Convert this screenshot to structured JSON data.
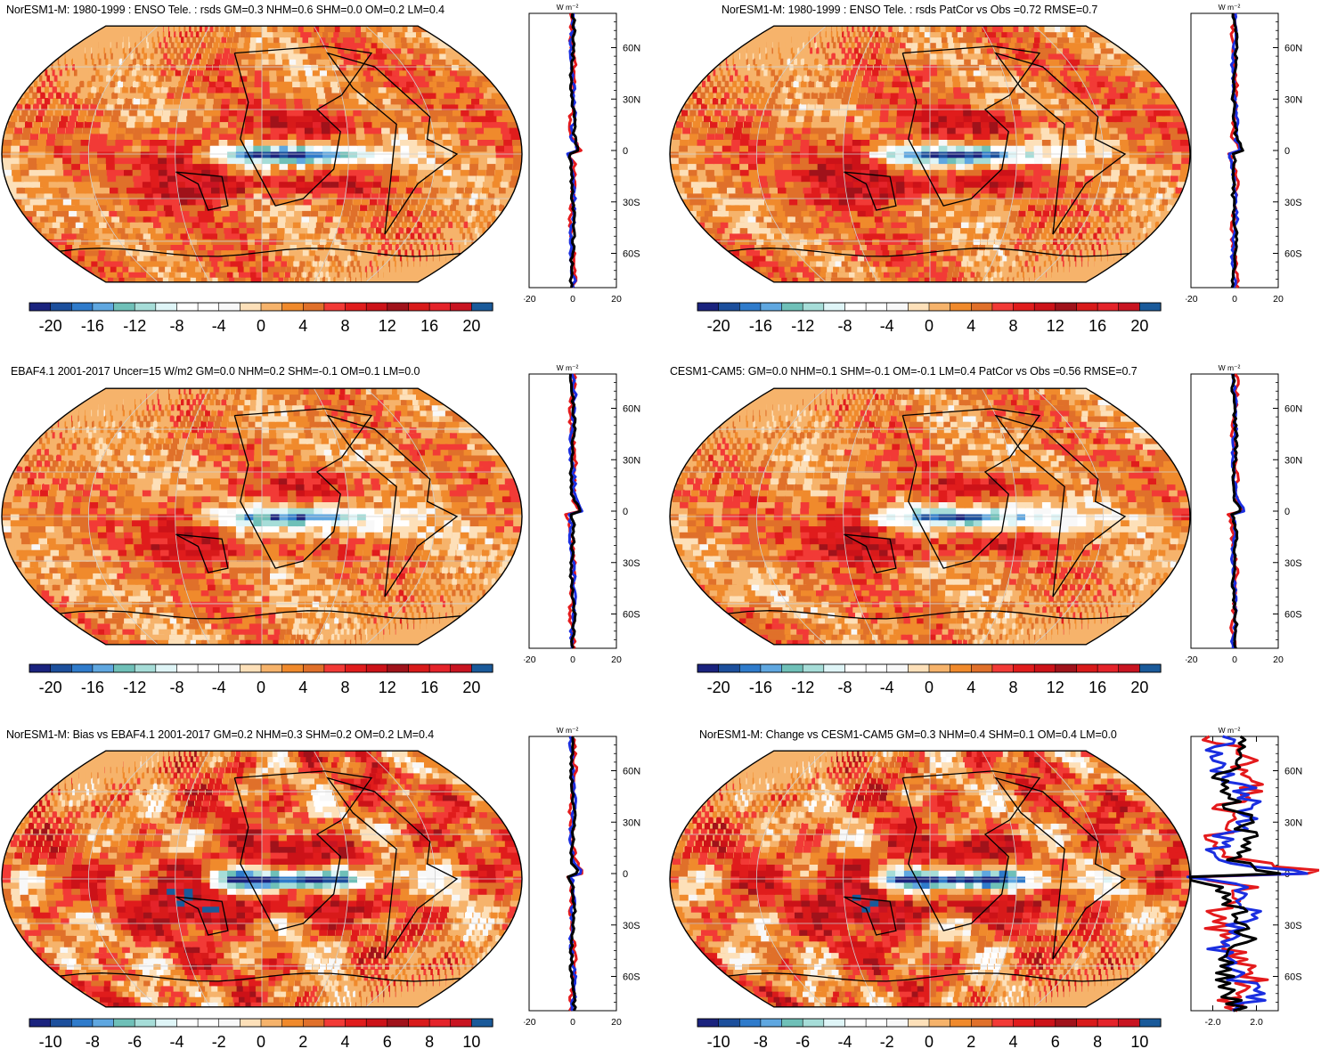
{
  "colors": {
    "div11": [
      "#1a237e",
      "#1c4f9c",
      "#2f7bcb",
      "#5fa7e0",
      "#6fc0b8",
      "#a6ddd8",
      "#dff5f7",
      "#ffffff",
      "#ffffff",
      "#f8f8f8",
      "#fde0b9",
      "#f6b36b",
      "#f08a2c",
      "#e0702a",
      "#f23a36",
      "#e01c1c",
      "#cc1218",
      "#a0121a",
      "#d81a1a",
      "#e4232a",
      "#c81421",
      "#1a5a9a"
    ],
    "obs": "#000000",
    "model": "#e41a1c",
    "alt": "#1a2ee0"
  },
  "chart_data": [
    {
      "type": "heatmap",
      "title": "NorESM1-M: 1980-1999 : ENSO Tele. : rsds GM=0.3 NHM=0.6 SHM=0.0 OM=0.2 LM=0.4",
      "colorbar_ticks": [
        "-20",
        "-16",
        "-12",
        "-8",
        "-4",
        "0",
        "4",
        "8",
        "12",
        "16",
        "20"
      ],
      "profile": {
        "xlim": [
          -20,
          20
        ],
        "xticks": [
          "-20",
          "0",
          "20"
        ],
        "unit": "W m⁻²",
        "ylim": [
          -80,
          80
        ],
        "yticks": [
          "60N",
          "30N",
          "0",
          "30S",
          "60S"
        ]
      }
    },
    {
      "type": "heatmap",
      "title": "NorESM1-M: 1980-1999 : ENSO Tele. : rsds PatCor vs Obs =0.72 RMSE=0.7",
      "colorbar_ticks": [
        "-20",
        "-16",
        "-12",
        "-8",
        "-4",
        "0",
        "4",
        "8",
        "12",
        "16",
        "20"
      ],
      "profile": {
        "xlim": [
          -20,
          20
        ],
        "xticks": [
          "-20",
          "0",
          "20"
        ],
        "unit": "W m⁻²",
        "ylim": [
          -80,
          80
        ],
        "yticks": [
          "60N",
          "30N",
          "0",
          "30S",
          "60S"
        ]
      }
    },
    {
      "type": "heatmap",
      "title": "EBAF4.1 2001-2017 Uncer=15 W/m2 GM=0.0 NHM=0.2 SHM=-0.1 OM=0.1 LM=0.0",
      "colorbar_ticks": [
        "-20",
        "-16",
        "-12",
        "-8",
        "-4",
        "0",
        "4",
        "8",
        "12",
        "16",
        "20"
      ],
      "profile": {
        "xlim": [
          -20,
          20
        ],
        "xticks": [
          "-20",
          "0",
          "20"
        ],
        "unit": "W m⁻²",
        "ylim": [
          -80,
          80
        ],
        "yticks": [
          "60N",
          "30N",
          "0",
          "30S",
          "60S"
        ]
      }
    },
    {
      "type": "heatmap",
      "title": "CESM1-CAM5: GM=0.0 NHM=0.1 SHM=-0.1 OM=-0.1 LM=0.4 PatCor vs Obs =0.56 RMSE=0.7",
      "colorbar_ticks": [
        "-20",
        "-16",
        "-12",
        "-8",
        "-4",
        "0",
        "4",
        "8",
        "12",
        "16",
        "20"
      ],
      "profile": {
        "xlim": [
          -20,
          20
        ],
        "xticks": [
          "-20",
          "0",
          "20"
        ],
        "unit": "W m⁻²",
        "ylim": [
          -80,
          80
        ],
        "yticks": [
          "60N",
          "30N",
          "0",
          "30S",
          "60S"
        ]
      }
    },
    {
      "type": "heatmap",
      "title": "NorESM1-M: Bias vs EBAF4.1 2001-2017 GM=0.2 NHM=0.3 SHM=0.2 OM=0.2 LM=0.4",
      "colorbar_ticks": [
        "-10",
        "-8",
        "-6",
        "-4",
        "-2",
        "0",
        "2",
        "4",
        "6",
        "8",
        "10"
      ],
      "profile": {
        "xlim": [
          -20,
          20
        ],
        "xticks": [
          "-20",
          "0",
          "20"
        ],
        "unit": "W m⁻²",
        "ylim": [
          -80,
          80
        ],
        "yticks": [
          "60N",
          "30N",
          "0",
          "30S",
          "60S"
        ]
      }
    },
    {
      "type": "heatmap",
      "title": "NorESM1-M: Change vs CESM1-CAM5 GM=0.3 NHM=0.4 SHM=0.1 OM=0.4 LM=0.0",
      "colorbar_ticks": [
        "-10",
        "-8",
        "-6",
        "-4",
        "-2",
        "0",
        "2",
        "4",
        "6",
        "8",
        "10"
      ],
      "profile": {
        "xlim": [
          -4,
          4
        ],
        "xticks": [
          "-2.0",
          "2.0"
        ],
        "unit": "W m⁻²",
        "ylim": [
          -80,
          80
        ],
        "yticks": [
          "60N",
          "30N",
          "0",
          "30S",
          "60S"
        ]
      }
    }
  ]
}
